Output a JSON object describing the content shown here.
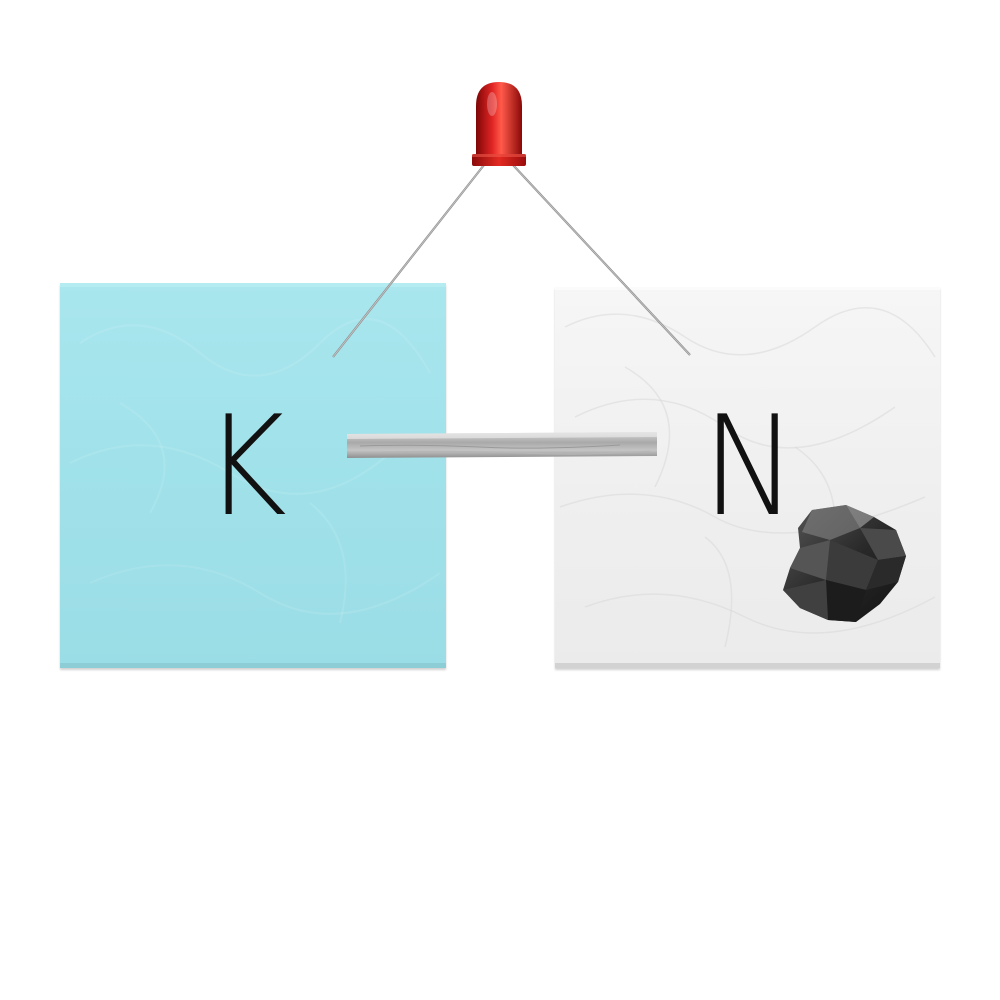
{
  "elements": [
    {
      "symbol": "K",
      "tile_color": "#a1e2ea"
    },
    {
      "symbol": "N",
      "tile_color": "#efefef"
    }
  ],
  "colors": {
    "led": "#d41414",
    "wire": "#8a8a8a",
    "metal_strip": "#b9b9b9",
    "mineral": "#2b2b2b"
  },
  "icons": {
    "led": "red-led-icon",
    "strip": "metal-strip-icon",
    "mineral": "carbon-lump-icon"
  }
}
